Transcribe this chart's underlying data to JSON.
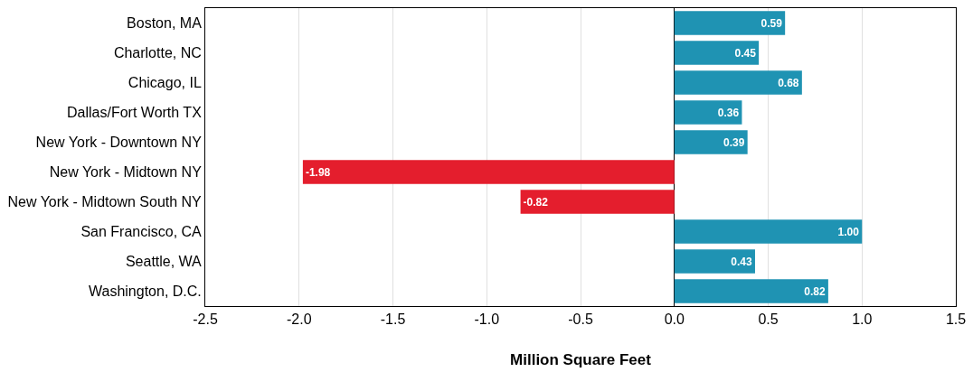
{
  "chart_data": {
    "type": "bar",
    "orientation": "horizontal",
    "xlabel": "Million Square Feet",
    "categories": [
      "Boston, MA",
      "Charlotte, NC",
      "Chicago, IL",
      "Dallas/Fort Worth TX",
      "New York - Downtown NY",
      "New York - Midtown NY",
      "New York - Midtown South NY",
      "San Francisco, CA",
      "Seattle, WA",
      "Washington, D.C."
    ],
    "values": [
      0.59,
      0.45,
      0.68,
      0.36,
      0.39,
      -1.98,
      -0.82,
      1.0,
      0.43,
      0.82
    ],
    "value_labels": [
      "0.59",
      "0.45",
      "0.68",
      "0.36",
      "0.39",
      "-1.98",
      "-0.82",
      "1.00",
      "0.43",
      "0.82"
    ],
    "colors": [
      "#1f93b3",
      "#1f93b3",
      "#1f93b3",
      "#1f93b3",
      "#1f93b3",
      "#e41e2d",
      "#e41e2d",
      "#1f93b3",
      "#1f93b3",
      "#1f93b3"
    ],
    "xlim": [
      -2.5,
      1.5
    ],
    "xticks": [
      -2.5,
      {
        "value": -2.0,
        "label": "-2.0"
      },
      -1.5,
      {
        "value": -1.0,
        "label": "-1.0"
      },
      -0.5,
      {
        "value": 0,
        "label": "0.0"
      },
      0.5,
      {
        "value": 1.0,
        "label": "1.0"
      },
      1.5
    ],
    "grid": "x",
    "legend": false
  }
}
